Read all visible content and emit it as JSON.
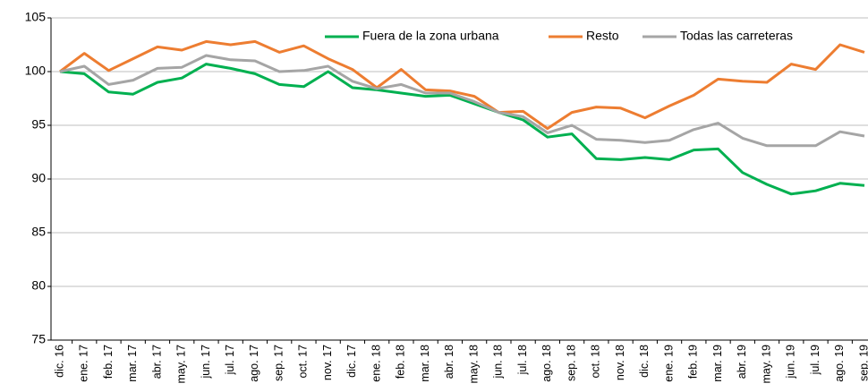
{
  "chart_data": {
    "type": "line",
    "categories": [
      "dic. 16",
      "ene. 17",
      "feb. 17",
      "mar. 17",
      "abr. 17",
      "may. 17",
      "jun. 17",
      "jul. 17",
      "ago. 17",
      "sep. 17",
      "oct. 17",
      "nov. 17",
      "dic. 17",
      "ene. 18",
      "feb. 18",
      "mar. 18",
      "abr. 18",
      "may. 18",
      "jun. 18",
      "jul. 18",
      "ago. 18",
      "sep. 18",
      "oct. 18",
      "nov. 18",
      "dic. 18",
      "ene. 19",
      "feb. 19",
      "mar. 19",
      "abr. 19",
      "may. 19",
      "jun. 19",
      "jul. 19",
      "ago. 19",
      "sep. 19"
    ],
    "series": [
      {
        "name": "Fuera de la zona urbana",
        "color": "#00b050",
        "values": [
          100,
          99.8,
          98.1,
          97.9,
          99.0,
          99.4,
          100.7,
          100.3,
          99.8,
          98.8,
          98.6,
          100,
          98.5,
          98.3,
          98.0,
          97.7,
          97.8,
          97.0,
          96.2,
          95.5,
          93.9,
          94.2,
          91.9,
          91.8,
          92.0,
          91.8,
          92.7,
          92.8,
          90.6,
          89.5,
          88.6,
          88.9,
          89.6,
          89.4
        ]
      },
      {
        "name": "Resto",
        "color": "#ed7d31",
        "values": [
          100,
          101.7,
          100.1,
          101.2,
          102.3,
          102.0,
          102.8,
          102.5,
          102.8,
          101.8,
          102.4,
          101.2,
          100.2,
          98.5,
          100.2,
          98.3,
          98.2,
          97.7,
          96.2,
          96.3,
          94.7,
          96.2,
          96.7,
          96.6,
          95.7,
          96.8,
          97.8,
          99.3,
          99.1,
          99.0,
          100.7,
          100.2,
          102.5,
          101.8
        ]
      },
      {
        "name": "Todas las carreteras",
        "color": "#a5a5a5",
        "values": [
          100,
          100.5,
          98.8,
          99.2,
          100.3,
          100.4,
          101.5,
          101.1,
          101.0,
          100.0,
          100.1,
          100.5,
          99.1,
          98.4,
          98.8,
          98.0,
          98.0,
          97.2,
          96.2,
          95.8,
          94.3,
          95.0,
          93.7,
          93.6,
          93.4,
          93.6,
          94.6,
          95.2,
          93.8,
          93.1,
          93.1,
          93.1,
          94.4,
          94.0
        ]
      }
    ],
    "ylim": [
      75,
      105
    ],
    "yticks": [
      75,
      80,
      85,
      90,
      95,
      100,
      105
    ],
    "grid": true,
    "legend": "top-right"
  }
}
